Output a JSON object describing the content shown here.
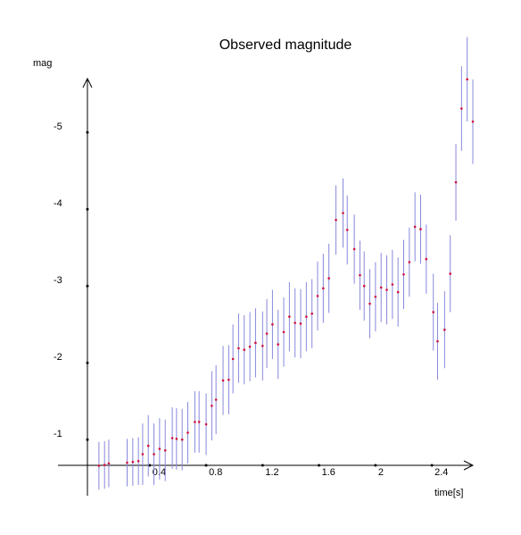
{
  "chart_data": {
    "type": "errorbar",
    "title": "Observed magnitude",
    "y_label": "mag",
    "x_label": "time[s]",
    "xlim": [
      -0.25,
      2.69
    ],
    "ylim": [
      -0.27,
      -5.7
    ],
    "xticks": [
      0.4,
      0.8,
      1.2,
      1.6,
      2,
      2.4
    ],
    "yticks": [
      -1,
      -2,
      -3,
      -4,
      -5
    ],
    "marker_color": "#d0103a",
    "error_color": "#8888dd",
    "x": [
      0.04,
      0.08,
      0.11,
      0.24,
      0.28,
      0.32,
      0.35,
      0.39,
      0.43,
      0.47,
      0.51,
      0.56,
      0.59,
      0.63,
      0.67,
      0.72,
      0.75,
      0.8,
      0.84,
      0.87,
      0.92,
      0.96,
      0.99,
      1.03,
      1.07,
      1.11,
      1.15,
      1.2,
      1.23,
      1.27,
      1.31,
      1.35,
      1.39,
      1.43,
      1.47,
      1.51,
      1.55,
      1.59,
      1.63,
      1.67,
      1.72,
      1.77,
      1.8,
      1.85,
      1.89,
      1.92,
      1.96,
      2.0,
      2.04,
      2.08,
      2.12,
      2.16,
      2.2,
      2.24,
      2.28,
      2.32,
      2.36,
      2.41,
      2.44,
      2.49,
      2.53,
      2.57,
      2.61,
      2.65,
      2.69
    ],
    "values": [
      -0.66,
      -0.67,
      -0.69,
      -0.7,
      -0.71,
      -0.72,
      -0.81,
      -0.92,
      -0.81,
      -0.88,
      -0.86,
      -1.02,
      -1.01,
      -1.0,
      -1.09,
      -1.23,
      -1.23,
      -1.2,
      -1.44,
      -1.52,
      -1.77,
      -1.78,
      -2.05,
      -2.19,
      -2.17,
      -2.21,
      -2.26,
      -2.22,
      -2.38,
      -2.5,
      -2.24,
      -2.4,
      -2.6,
      -2.52,
      -2.51,
      -2.6,
      -2.64,
      -2.87,
      -2.97,
      -3.1,
      -3.86,
      -3.95,
      -3.73,
      -3.48,
      -3.14,
      -3.0,
      -2.77,
      -2.86,
      -2.98,
      -2.95,
      -3.02,
      -2.92,
      -3.15,
      -3.31,
      -3.77,
      -3.74,
      -3.35,
      -2.66,
      -2.28,
      -2.43,
      -3.16,
      -4.35,
      -5.31,
      -5.69,
      -5.14
    ],
    "errors": [
      0.31,
      0.31,
      0.31,
      0.31,
      0.31,
      0.31,
      0.4,
      0.4,
      0.4,
      0.4,
      0.4,
      0.4,
      0.4,
      0.4,
      0.4,
      0.4,
      0.4,
      0.4,
      0.45,
      0.45,
      0.45,
      0.45,
      0.45,
      0.45,
      0.45,
      0.45,
      0.45,
      0.45,
      0.45,
      0.45,
      0.45,
      0.45,
      0.45,
      0.45,
      0.45,
      0.45,
      0.45,
      0.45,
      0.45,
      0.45,
      0.45,
      0.45,
      0.45,
      0.45,
      0.45,
      0.45,
      0.45,
      0.45,
      0.45,
      0.45,
      0.45,
      0.45,
      0.45,
      0.45,
      0.45,
      0.45,
      0.45,
      0.5,
      0.5,
      0.5,
      0.5,
      0.5,
      0.55,
      0.55,
      0.55
    ]
  }
}
